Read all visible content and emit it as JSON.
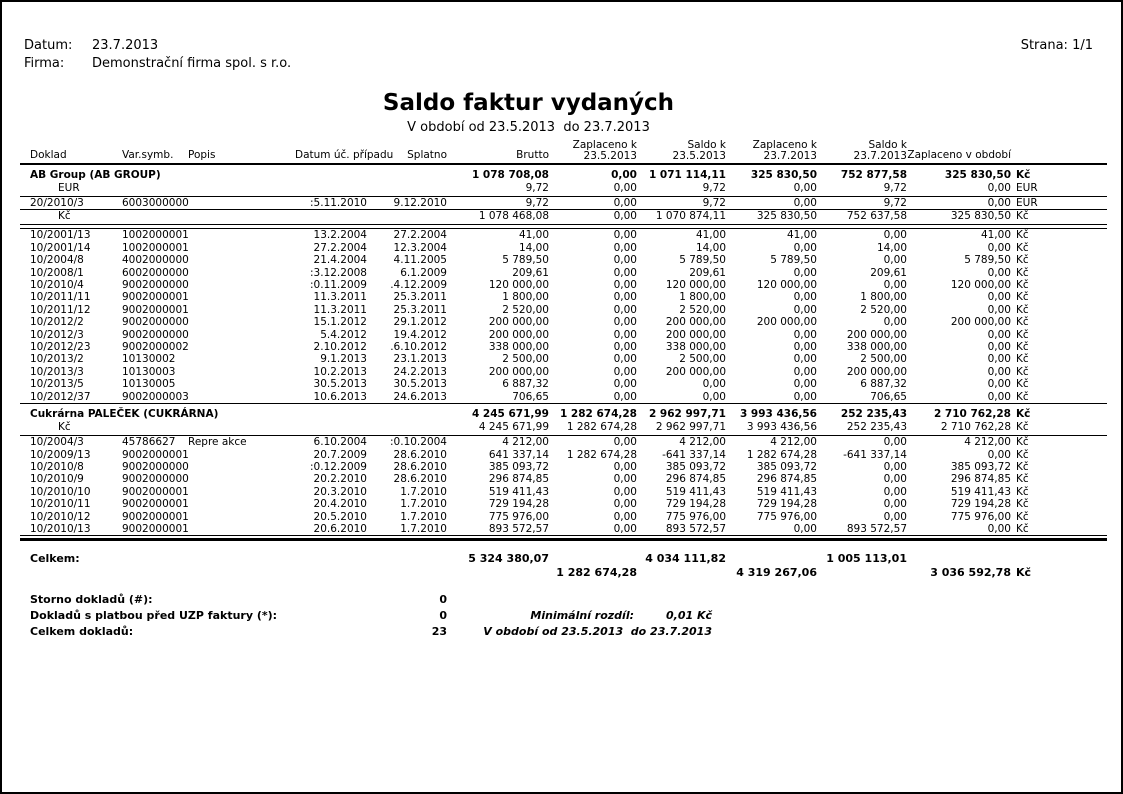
{
  "page": {
    "date_label": "Datum:",
    "date": "23.7.2013",
    "firm_label": "Firma:",
    "firm": "Demonstrační firma spol. s r.o.",
    "page_label": "Strana: 1/1",
    "title": "Saldo faktur vydaných",
    "subtitle": "V období od 23.5.2013  do 23.7.2013"
  },
  "table": {
    "headers": {
      "doklad": "Doklad",
      "varsymb": "Var.symb.",
      "popis": "Popis",
      "datum": "Datum úč. případu",
      "splatno": "Splatno",
      "brutto": "Brutto",
      "zapl1_l1": "Zaplaceno k",
      "zapl1_l2": "23.5.2013",
      "saldo1_l1": "Saldo k",
      "saldo1_l2": "23.5.2013",
      "zapl2_l1": "Zaplaceno k",
      "zapl2_l2": "23.7.2013",
      "saldo2_l1": "Saldo k",
      "saldo2_l2": "23.7.2013",
      "zaplobd": "Zaplaceno v období"
    },
    "groups": [
      {
        "name": "AB Group (AB GROUP)",
        "totals": [
          "1 078 708,08",
          "0,00",
          "1 071 114,11",
          "325 830,50",
          "752 877,58",
          "325 830,50",
          "Kč"
        ],
        "sections": [
          {
            "currency": "EUR",
            "gap": false,
            "subtotal": [
              "9,72",
              "0,00",
              "9,72",
              "0,00",
              "9,72",
              "0,00",
              "EUR"
            ],
            "rows": [
              [
                "20/2010/3",
                "6003000000",
                "",
                ":5.11.2010",
                "9.12.2010",
                "9,72",
                "0,00",
                "9,72",
                "0,00",
                "9,72",
                "0,00",
                "EUR"
              ]
            ]
          },
          {
            "currency": "Kč",
            "gap": true,
            "subtotal": [
              "1 078 468,08",
              "0,00",
              "1 070 874,11",
              "325 830,50",
              "752 637,58",
              "325 830,50",
              "Kč"
            ],
            "rows": [
              [
                "10/2001/13",
                "1002000001",
                "",
                "13.2.2004",
                "27.2.2004",
                "41,00",
                "0,00",
                "41,00",
                "41,00",
                "0,00",
                "41,00",
                "Kč"
              ],
              [
                "10/2001/14",
                "1002000001",
                "",
                "27.2.2004",
                "12.3.2004",
                "14,00",
                "0,00",
                "14,00",
                "0,00",
                "14,00",
                "0,00",
                "Kč"
              ],
              [
                "10/2004/8",
                "4002000000",
                "",
                "21.4.2004",
                "4.11.2005",
                "5 789,50",
                "0,00",
                "5 789,50",
                "5 789,50",
                "0,00",
                "5 789,50",
                "Kč"
              ],
              [
                "10/2008/1",
                "6002000000",
                "",
                ":3.12.2008",
                "6.1.2009",
                "209,61",
                "0,00",
                "209,61",
                "0,00",
                "209,61",
                "0,00",
                "Kč"
              ],
              [
                "10/2010/4",
                "9002000000",
                "",
                ":0.11.2009",
                ".4.12.2009",
                "120 000,00",
                "0,00",
                "120 000,00",
                "120 000,00",
                "0,00",
                "120 000,00",
                "Kč"
              ],
              [
                "10/2011/11",
                "9002000001",
                "",
                "11.3.2011",
                "25.3.2011",
                "1 800,00",
                "0,00",
                "1 800,00",
                "0,00",
                "1 800,00",
                "0,00",
                "Kč"
              ],
              [
                "10/2011/12",
                "9002000001",
                "",
                "11.3.2011",
                "25.3.2011",
                "2 520,00",
                "0,00",
                "2 520,00",
                "0,00",
                "2 520,00",
                "0,00",
                "Kč"
              ],
              [
                "10/2012/2",
                "9002000000",
                "",
                "15.1.2012",
                "29.1.2012",
                "200 000,00",
                "0,00",
                "200 000,00",
                "200 000,00",
                "0,00",
                "200 000,00",
                "Kč"
              ],
              [
                "10/2012/3",
                "9002000000",
                "",
                "5.4.2012",
                "19.4.2012",
                "200 000,00",
                "0,00",
                "200 000,00",
                "0,00",
                "200 000,00",
                "0,00",
                "Kč"
              ],
              [
                "10/2012/23",
                "9002000002",
                "",
                "2.10.2012",
                ".6.10.2012",
                "338 000,00",
                "0,00",
                "338 000,00",
                "0,00",
                "338 000,00",
                "0,00",
                "Kč"
              ],
              [
                "10/2013/2",
                "10130002",
                "",
                "9.1.2013",
                "23.1.2013",
                "2 500,00",
                "0,00",
                "2 500,00",
                "0,00",
                "2 500,00",
                "0,00",
                "Kč"
              ],
              [
                "10/2013/3",
                "10130003",
                "",
                "10.2.2013",
                "24.2.2013",
                "200 000,00",
                "0,00",
                "200 000,00",
                "0,00",
                "200 000,00",
                "0,00",
                "Kč"
              ],
              [
                "10/2013/5",
                "10130005",
                "",
                "30.5.2013",
                "30.5.2013",
                "6 887,32",
                "0,00",
                "0,00",
                "0,00",
                "6 887,32",
                "0,00",
                "Kč"
              ],
              [
                "10/2012/37",
                "9002000003",
                "",
                "10.6.2013",
                "24.6.2013",
                "706,65",
                "0,00",
                "0,00",
                "0,00",
                "706,65",
                "0,00",
                "Kč"
              ]
            ]
          }
        ]
      },
      {
        "name": "Cukrárna PALEČEK (CUKRÁRNA)",
        "totals": [
          "4 245 671,99",
          "1 282 674,28",
          "2 962 997,71",
          "3 993 436,56",
          "252 235,43",
          "2 710 762,28",
          "Kč"
        ],
        "sections": [
          {
            "currency": "Kč",
            "gap": false,
            "subtotal": [
              "4 245 671,99",
              "1 282 674,28",
              "2 962 997,71",
              "3 993 436,56",
              "252 235,43",
              "2 710 762,28",
              "Kč"
            ],
            "rows": [
              [
                "10/2004/3",
                "45786627",
                "Repre akce",
                "6.10.2004",
                ":0.10.2004",
                "4 212,00",
                "0,00",
                "4 212,00",
                "4 212,00",
                "0,00",
                "4 212,00",
                "Kč"
              ],
              [
                "10/2009/13",
                "9002000001",
                "",
                "20.7.2009",
                "28.6.2010",
                "641 337,14",
                "1 282 674,28",
                "-641 337,14",
                "1 282 674,28",
                "-641 337,14",
                "0,00",
                "Kč"
              ],
              [
                "10/2010/8",
                "9002000000",
                "",
                ":0.12.2009",
                "28.6.2010",
                "385 093,72",
                "0,00",
                "385 093,72",
                "385 093,72",
                "0,00",
                "385 093,72",
                "Kč"
              ],
              [
                "10/2010/9",
                "9002000000",
                "",
                "20.2.2010",
                "28.6.2010",
                "296 874,85",
                "0,00",
                "296 874,85",
                "296 874,85",
                "0,00",
                "296 874,85",
                "Kč"
              ],
              [
                "10/2010/10",
                "9002000001",
                "",
                "20.3.2010",
                "1.7.2010",
                "519 411,43",
                "0,00",
                "519 411,43",
                "519 411,43",
                "0,00",
                "519 411,43",
                "Kč"
              ],
              [
                "10/2010/11",
                "9002000001",
                "",
                "20.4.2010",
                "1.7.2010",
                "729 194,28",
                "0,00",
                "729 194,28",
                "729 194,28",
                "0,00",
                "729 194,28",
                "Kč"
              ],
              [
                "10/2010/12",
                "9002000001",
                "",
                "20.5.2010",
                "1.7.2010",
                "775 976,00",
                "0,00",
                "775 976,00",
                "775 976,00",
                "0,00",
                "775 976,00",
                "Kč"
              ],
              [
                "10/2010/13",
                "9002000001",
                "",
                "20.6.2010",
                "1.7.2010",
                "893 572,57",
                "0,00",
                "893 572,57",
                "0,00",
                "893 572,57",
                "0,00",
                "Kč"
              ]
            ]
          }
        ]
      }
    ],
    "totals": {
      "label": "Celkem:",
      "row1": {
        "brutto": "5 324 380,07",
        "saldo1": "4 034 111,82",
        "saldo2": "1 005 113,01"
      },
      "row2": {
        "zapl1": "1 282 674,28",
        "zapl2": "4 319 267,06",
        "zaplobd": "3 036 592,78",
        "curr": "Kč"
      }
    },
    "summary": [
      {
        "label": "Storno dokladů (#):",
        "value": "0",
        "note_label": "",
        "note_value": "",
        "note": ""
      },
      {
        "label": "Dokladů s platbou před UZP faktury (*):",
        "value": "0",
        "note_label": "Minimální rozdíl:",
        "note_value": "0,01 Kč",
        "note": ""
      },
      {
        "label": "Celkem dokladů:",
        "value": "23",
        "note_label": "",
        "note_value": "",
        "note": "V období od 23.5.2013  do 23.7.2013"
      }
    ]
  }
}
